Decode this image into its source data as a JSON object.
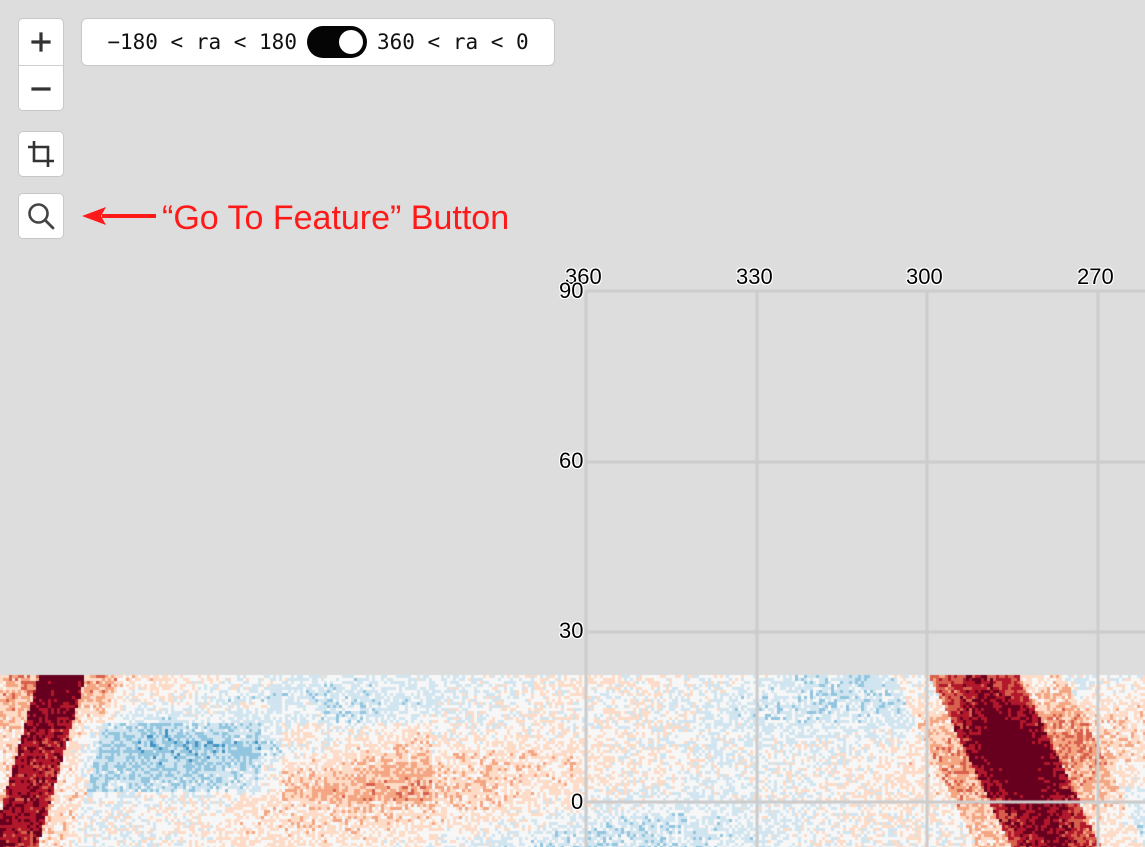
{
  "map": {
    "background_color": "#dddddd",
    "grid_color": "#cccccc",
    "colormap": [
      "#67001f",
      "#b2182b",
      "#d6604d",
      "#f4a582",
      "#fddbc7",
      "#f7f7f7",
      "#d1e5f0",
      "#92c5de",
      "#4393c3",
      "#2166ac"
    ],
    "ra_labels": [
      "360",
      "330",
      "300",
      "270"
    ],
    "dec_labels": [
      "90",
      "60",
      "30",
      "0"
    ]
  },
  "controls": {
    "zoom_in_icon": "plus-icon",
    "zoom_out_icon": "minus-icon",
    "crop_icon": "crop-icon",
    "search_icon": "search-icon"
  },
  "ra_toggle": {
    "left_label": "−180 < ra < 180",
    "right_label": "360 < ra < 0",
    "state": "360 < ra < 0"
  },
  "annotation": {
    "text": "“Go To Feature” Button",
    "color": "#ff1a1a"
  }
}
